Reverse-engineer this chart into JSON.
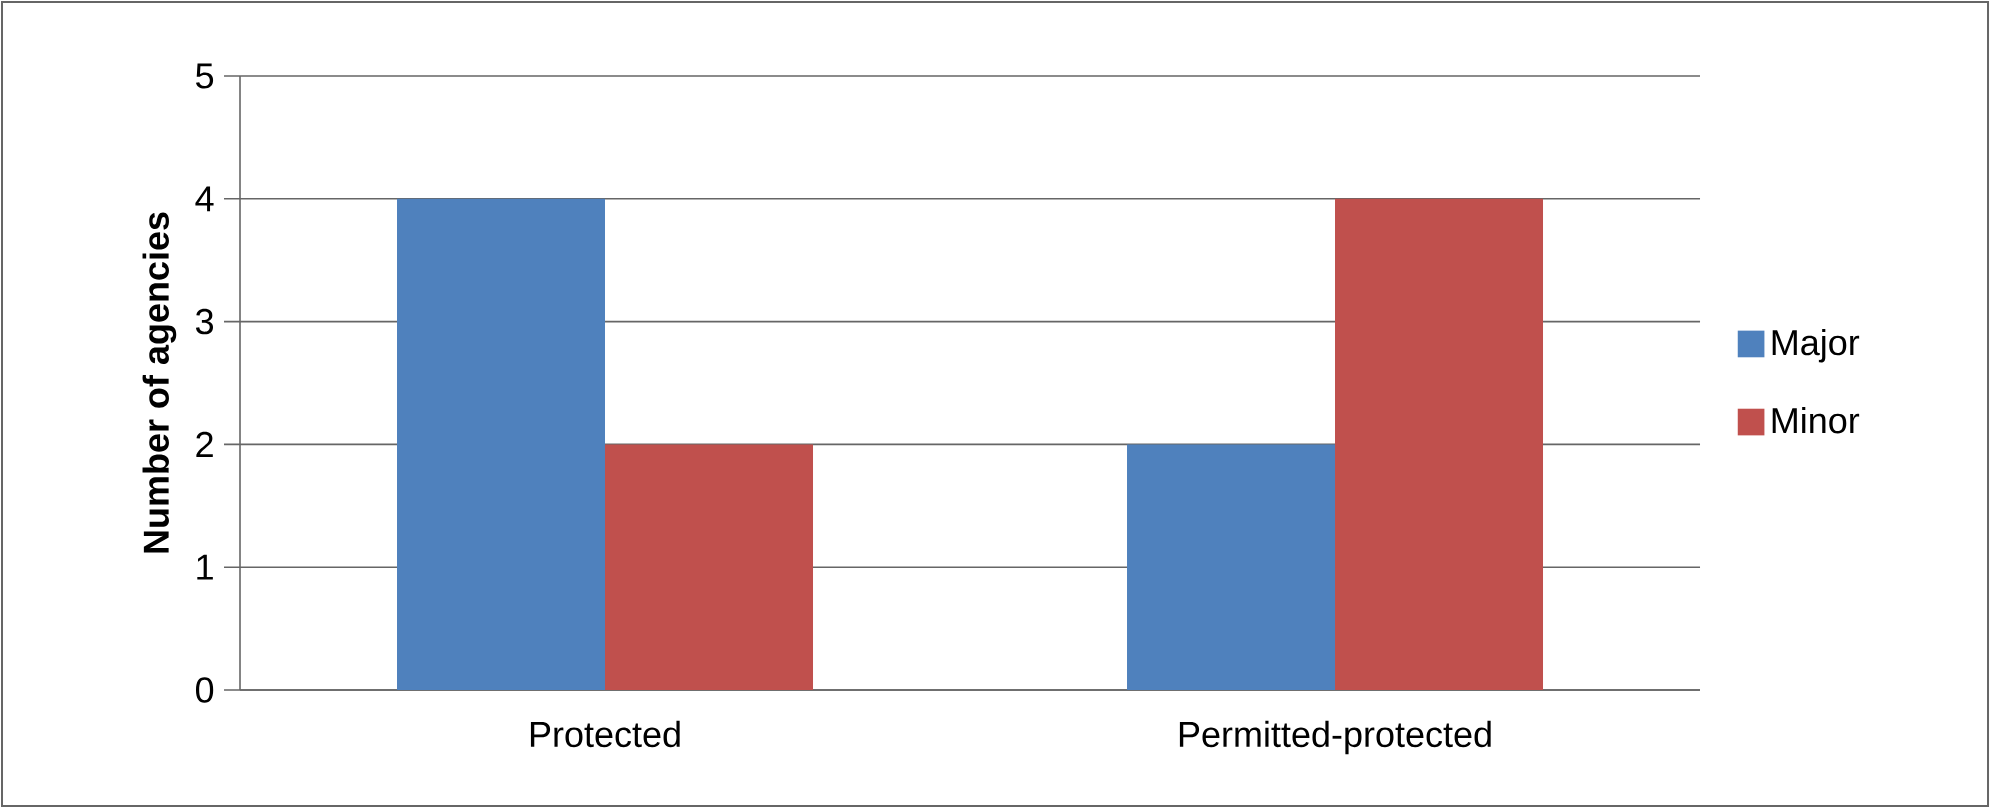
{
  "chart_data": {
    "type": "bar",
    "ylabel": "Number of agencies",
    "categories": [
      "Protected",
      "Permitted-protected"
    ],
    "series": [
      {
        "name": "Major",
        "color": "#4f81bd",
        "values": [
          4,
          2
        ]
      },
      {
        "name": "Minor",
        "color": "#c0504d",
        "values": [
          2,
          4
        ]
      }
    ],
    "ylim": [
      0,
      5
    ],
    "yticks": [
      0,
      1,
      2,
      3,
      4,
      5
    ],
    "grid": "y",
    "legend": "right"
  }
}
